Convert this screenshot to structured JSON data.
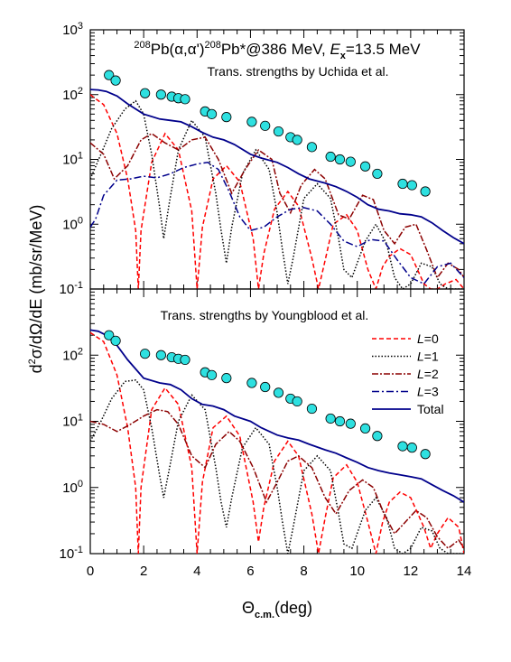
{
  "colors": {
    "L0": "#ff0000",
    "L1": "#000000",
    "L2": "#8b0000",
    "L3": "#00008b",
    "total": "#00008b",
    "points_fill": "#2ee0e0",
    "points_stroke": "#000000"
  },
  "chart_data": {
    "type": "line",
    "log_scale_y": true,
    "xlabel": "Θc.m.(deg)",
    "xlabel_main": "Θ",
    "xlabel_sub": "c.m.",
    "xlabel_unit": "(deg)",
    "ylabel": "d²σ/dΩ/dE (mb/sr/MeV)",
    "ylabel_pre": "d",
    "ylabel_sup": "2",
    "ylabel_post": "σ/dΩ/dE (mb/sr/MeV)",
    "xlim": [
      0,
      14
    ],
    "x_ticks": [
      "0",
      "2",
      "4",
      "6",
      "8",
      "10",
      "12",
      "14"
    ],
    "legend": {
      "position": "right, upper part of lower panel",
      "entries": [
        {
          "key": "L0",
          "italic": "L",
          "rest": "=0"
        },
        {
          "key": "L1",
          "italic": "L",
          "rest": "=1"
        },
        {
          "key": "L2",
          "italic": "L",
          "rest": "=2"
        },
        {
          "key": "L3",
          "italic": "L",
          "rest": "=3"
        },
        {
          "key": "total",
          "italic": "",
          "rest": "Total"
        }
      ]
    },
    "title_parts": {
      "sup1": "208",
      "a": "Pb(α,α')",
      "sup2": "208",
      "b": "Pb*@386 MeV, ",
      "c_italic": "E",
      "c_sub": "x",
      "d": "=13.5 MeV"
    },
    "data_points": {
      "x": [
        0.7,
        0.95,
        2.05,
        2.65,
        3.05,
        3.3,
        3.55,
        4.3,
        4.55,
        5.1,
        6.05,
        6.55,
        7.05,
        7.5,
        7.75,
        8.3,
        9.0,
        9.35,
        9.75,
        10.3,
        10.75,
        11.7,
        12.05,
        12.55
      ],
      "y": [
        200,
        165,
        105,
        100,
        93,
        88,
        85,
        55,
        50,
        45,
        38,
        33,
        27,
        22,
        20,
        15.5,
        11,
        10,
        9.2,
        7.8,
        6.0,
        4.2,
        4.0,
        3.2
      ]
    },
    "panels": [
      {
        "name": "Uchida",
        "subtitle": "Trans. strengths by Uchida et al.",
        "has_title": true,
        "ylim": [
          0.1,
          1000
        ],
        "y_ticks": [
          {
            "base": "10",
            "exp": "-1",
            "v": 0.1
          },
          {
            "base": "10",
            "exp": "0",
            "v": 1
          },
          {
            "base": "10",
            "exp": "1",
            "v": 10
          },
          {
            "base": "10",
            "exp": "2",
            "v": 100
          },
          {
            "base": "10",
            "exp": "3",
            "v": 1000
          }
        ],
        "series": [
          {
            "key": "L0",
            "dash": "5,3",
            "x": [
              0,
              0.5,
              1.0,
              1.4,
              1.7,
              1.8,
              1.9,
              2.3,
              2.8,
              3.3,
              3.8,
              4.0,
              4.2,
              4.6,
              5.1,
              5.6,
              6.1,
              6.3,
              6.5,
              6.9,
              7.4,
              7.8,
              8.3,
              8.55,
              8.8,
              9.1,
              9.6,
              10.0,
              10.4,
              10.7,
              10.95,
              11.2,
              11.6,
              12.0,
              12.5,
              12.75,
              13.0,
              13.3,
              13.7,
              14.0
            ],
            "y": [
              100,
              70,
              25,
              5,
              0.8,
              0.1,
              0.8,
              9,
              25,
              14,
              1.6,
              0.1,
              0.9,
              5,
              8,
              4.5,
              0.6,
              0.1,
              0.35,
              1.7,
              3.2,
              1.9,
              0.3,
              0.1,
              0.28,
              1,
              1.4,
              0.8,
              0.2,
              0.1,
              0.22,
              0.32,
              0.42,
              0.34,
              0.12,
              0.1,
              0.1,
              0.12,
              0.14,
              0.1
            ]
          },
          {
            "key": "L1",
            "dash": "1.5,2",
            "x": [
              0,
              0.4,
              0.8,
              1.3,
              1.7,
              2.0,
              2.3,
              2.6,
              2.75,
              2.95,
              3.3,
              3.8,
              4.3,
              4.7,
              4.9,
              5.1,
              5.3,
              5.7,
              6.2,
              6.7,
              7.0,
              7.2,
              7.4,
              7.6,
              8.0,
              8.5,
              9.0,
              9.3,
              9.5,
              9.8,
              10.3,
              10.7,
              11.1,
              11.4,
              11.7,
              12.0,
              12.4,
              12.8,
              13.1,
              13.4,
              13.7,
              14.0
            ],
            "y": [
              5,
              12,
              30,
              60,
              80,
              50,
              12,
              1.8,
              0.6,
              2,
              14,
              40,
              22,
              3,
              0.8,
              0.25,
              0.9,
              6,
              14,
              7,
              1.5,
              0.4,
              0.12,
              0.3,
              2.5,
              4.2,
              2.5,
              0.6,
              0.2,
              0.15,
              0.55,
              1,
              0.5,
              0.15,
              0.1,
              0.12,
              0.25,
              0.22,
              0.12,
              0.1,
              0.1,
              0.1
            ]
          },
          {
            "key": "L2",
            "dash": "7,2,2,2",
            "x": [
              0,
              0.5,
              0.9,
              1.4,
              1.9,
              2.3,
              2.8,
              3.3,
              3.8,
              4.3,
              4.8,
              5.3,
              5.8,
              6.3,
              6.8,
              7.1,
              7.5,
              7.9,
              8.4,
              8.8,
              9.3,
              9.7,
              10.2,
              10.6,
              11.0,
              11.4,
              11.8,
              12.2,
              12.6,
              13.0,
              13.4,
              13.8,
              14.0
            ],
            "y": [
              18,
              12,
              5,
              8,
              20,
              25,
              18,
              14,
              20,
              22,
              10,
              3,
              7,
              14,
              10,
              3,
              1.5,
              4,
              7,
              5,
              1.4,
              1.2,
              2.8,
              2.4,
              0.8,
              0.5,
              0.9,
              1.0,
              0.4,
              0.15,
              0.25,
              0.2,
              0.15
            ]
          },
          {
            "key": "L3",
            "dash": "8,3,2,3",
            "x": [
              0,
              0.2,
              0.5,
              1.0,
              1.5,
              2.0,
              2.5,
              3.0,
              3.5,
              4.0,
              4.4,
              4.8,
              5.2,
              5.6,
              6.0,
              6.5,
              7.0,
              7.5,
              8.0,
              8.5,
              9.0,
              9.5,
              10.0,
              10.5,
              11.0,
              11.5,
              12.0,
              12.5,
              13.0,
              13.5,
              14.0
            ],
            "y": [
              0.9,
              1.2,
              2.8,
              4.8,
              5,
              5.5,
              5.2,
              6,
              7.5,
              8.5,
              9,
              7,
              3.2,
              1.3,
              0.8,
              0.9,
              1.3,
              1.7,
              1.8,
              1.6,
              1.0,
              0.55,
              0.45,
              0.58,
              0.55,
              0.28,
              0.15,
              0.12,
              0.22,
              0.25,
              0.15
            ]
          },
          {
            "key": "total",
            "dash": "",
            "x": [
              0,
              0.3,
              0.6,
              1.0,
              1.4,
              2.0,
              2.6,
              3.0,
              3.4,
              3.8,
              4.2,
              4.6,
              5.0,
              5.4,
              6.0,
              6.4,
              7.0,
              7.4,
              7.8,
              8.2,
              8.8,
              9.2,
              9.6,
              10.0,
              10.4,
              10.8,
              11.2,
              11.6,
              12.0,
              12.4,
              12.8,
              13.2,
              13.6,
              14.0
            ],
            "y": [
              120,
              118,
              112,
              95,
              72,
              50,
              42,
              40,
              38,
              32,
              26,
              22,
              20,
              17,
              12,
              10.5,
              9,
              7.5,
              6,
              5,
              4.3,
              3.8,
              3.2,
              2.6,
              2.0,
              1.7,
              1.6,
              1.45,
              1.4,
              1.3,
              1.05,
              0.8,
              0.62,
              0.5
            ]
          }
        ]
      },
      {
        "name": "Youngblood",
        "subtitle": "Trans. strengths by Youngblood et al.",
        "has_title": false,
        "ylim": [
          0.1,
          1000
        ],
        "y_ticks": [
          {
            "base": "10",
            "exp": "-1",
            "v": 0.1
          },
          {
            "base": "10",
            "exp": "0",
            "v": 1
          },
          {
            "base": "10",
            "exp": "1",
            "v": 10
          },
          {
            "base": "10",
            "exp": "2",
            "v": 100
          }
        ],
        "series": [
          {
            "key": "L0",
            "dash": "5,3",
            "x": [
              0,
              0.5,
              1.0,
              1.4,
              1.7,
              1.8,
              1.9,
              2.3,
              2.8,
              3.3,
              3.8,
              4.0,
              4.2,
              4.6,
              5.1,
              5.6,
              6.1,
              6.3,
              6.5,
              6.9,
              7.4,
              7.8,
              8.3,
              8.55,
              8.8,
              9.1,
              9.6,
              10.0,
              10.4,
              10.7,
              10.95,
              11.2,
              11.6,
              12.0,
              12.5,
              12.75,
              13.0,
              13.4,
              13.8,
              14.0
            ],
            "y": [
              220,
              160,
              50,
              8,
              1,
              0.1,
              1,
              15,
              32,
              18,
              2,
              0.1,
              1.2,
              8,
              12,
              6,
              0.6,
              0.15,
              0.5,
              2.5,
              5,
              3,
              0.4,
              0.1,
              0.35,
              1.4,
              2.2,
              1.2,
              0.3,
              0.1,
              0.3,
              0.6,
              0.85,
              0.7,
              0.25,
              0.12,
              0.2,
              0.35,
              0.25,
              0.1
            ]
          },
          {
            "key": "L1",
            "dash": "1.5,2",
            "x": [
              0,
              0.4,
              0.8,
              1.3,
              1.7,
              2.0,
              2.3,
              2.6,
              2.75,
              2.95,
              3.3,
              3.8,
              4.3,
              4.7,
              4.9,
              5.1,
              5.3,
              5.7,
              6.2,
              6.7,
              7.0,
              7.2,
              7.4,
              7.6,
              8.0,
              8.5,
              9.0,
              9.3,
              9.5,
              9.8,
              10.3,
              10.7,
              11.1,
              11.4,
              11.7,
              12.0,
              12.4,
              12.8,
              13.1,
              13.4,
              13.7,
              14.0
            ],
            "y": [
              5,
              10,
              22,
              40,
              42,
              30,
              8,
              1.5,
              0.7,
              1.8,
              10,
              25,
              15,
              2,
              0.6,
              0.25,
              0.7,
              4,
              8,
              4.5,
              1,
              0.3,
              0.1,
              0.25,
              1.8,
              3,
              1.8,
              0.4,
              0.14,
              0.12,
              0.45,
              0.7,
              0.35,
              0.12,
              0.1,
              0.12,
              0.25,
              0.22,
              0.12,
              0.1,
              0.1,
              0.1
            ]
          },
          {
            "key": "L2",
            "dash": "7,2,2,2",
            "x": [
              0,
              0.5,
              1.0,
              1.5,
              2.0,
              2.5,
              2.9,
              3.3,
              3.8,
              4.3,
              4.7,
              5.2,
              5.6,
              6.1,
              6.6,
              7.0,
              7.4,
              7.8,
              8.3,
              8.8,
              9.2,
              9.7,
              10.2,
              10.6,
              11.0,
              11.4,
              11.8,
              12.2,
              12.6,
              13.0,
              13.4,
              13.8,
              14.0
            ],
            "y": [
              10,
              9,
              7,
              9,
              12,
              15,
              14,
              9,
              3,
              2,
              4.5,
              7,
              5,
              2,
              0.6,
              1.2,
              2.5,
              3,
              2,
              0.7,
              0.4,
              0.9,
              1.3,
              1.0,
              0.4,
              0.2,
              0.3,
              0.45,
              0.35,
              0.18,
              0.12,
              0.16,
              0.12
            ]
          },
          {
            "key": "total",
            "dash": "",
            "x": [
              0,
              0.3,
              0.6,
              1.0,
              1.4,
              2.0,
              2.6,
              3.0,
              3.4,
              3.8,
              4.2,
              4.6,
              5.0,
              5.4,
              6.0,
              6.4,
              7.0,
              7.4,
              7.8,
              8.2,
              8.8,
              9.2,
              9.6,
              10.0,
              10.4,
              10.8,
              11.2,
              11.6,
              12.0,
              12.4,
              12.8,
              13.2,
              13.6,
              14.0
            ],
            "y": [
              240,
              230,
              200,
              140,
              85,
              45,
              38,
              36,
              30,
              22,
              18,
              17,
              15,
              12,
              10,
              8,
              6.2,
              5.6,
              5.2,
              4.5,
              3.7,
              3.3,
              2.8,
              2.4,
              2.0,
              1.8,
              1.65,
              1.55,
              1.45,
              1.35,
              1.1,
              0.9,
              0.75,
              0.6
            ]
          }
        ]
      }
    ]
  }
}
